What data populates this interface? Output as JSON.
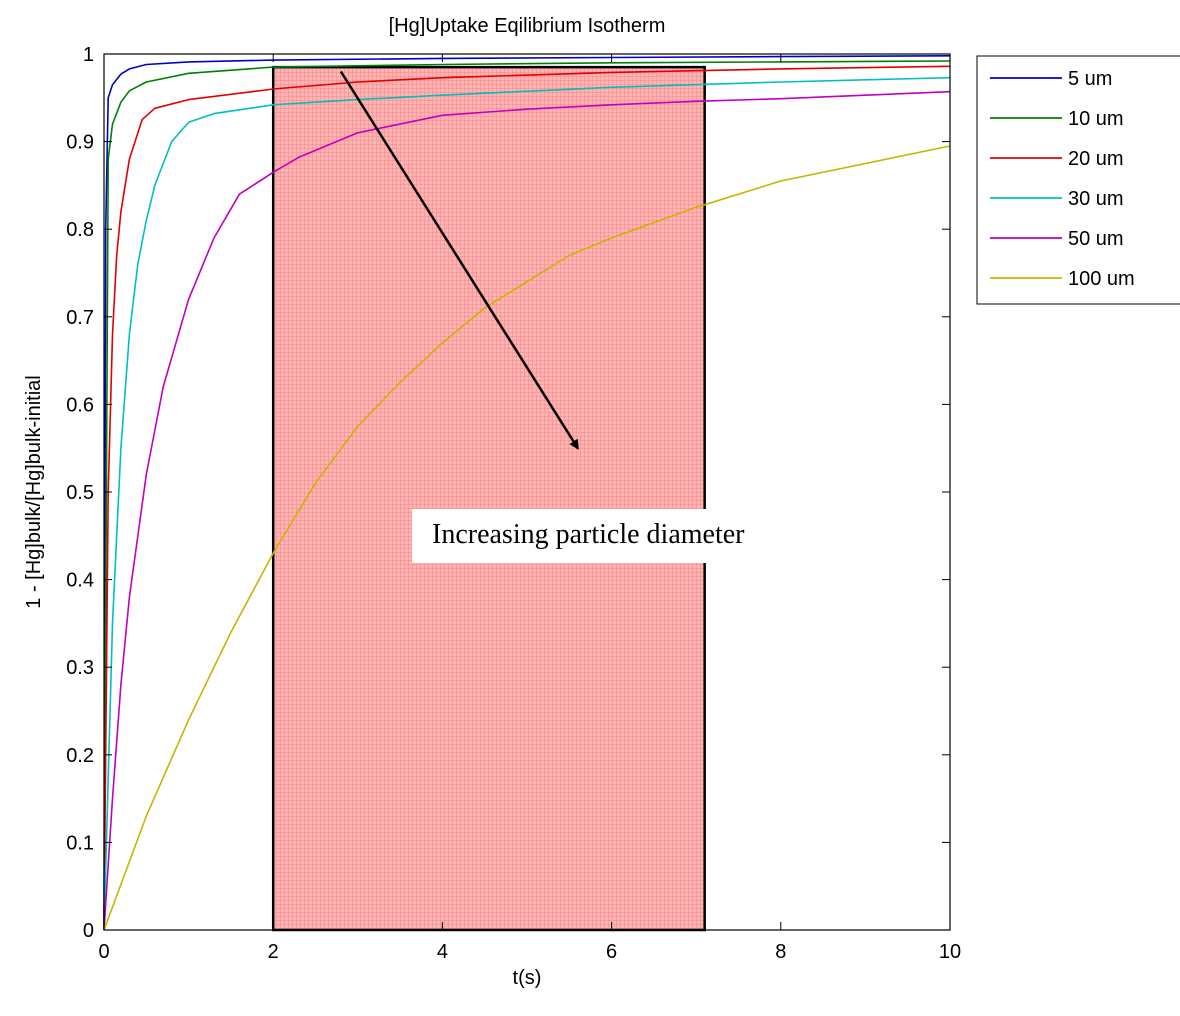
{
  "chart_data": {
    "type": "line",
    "title": "[Hg]Uptake Eqilibrium Isotherm",
    "xlabel": "t(s)",
    "ylabel": "1 - [Hg]bulk/[Hg]bulk-initial",
    "xlim": [
      0,
      10
    ],
    "ylim": [
      0,
      1
    ],
    "xticks": [
      "0",
      "2",
      "4",
      "6",
      "8",
      "10"
    ],
    "yticks": [
      "0",
      "0.1",
      "0.2",
      "0.3",
      "0.4",
      "0.5",
      "0.6",
      "0.7",
      "0.8",
      "0.9",
      "1"
    ],
    "grid": false,
    "legend_position": "outside-top-right",
    "series": [
      {
        "name": "5 um",
        "color": "#0000cc",
        "x": [
          0,
          0.02,
          0.05,
          0.1,
          0.2,
          0.3,
          0.5,
          1,
          2,
          4,
          6,
          8,
          10
        ],
        "y": [
          0,
          0.8,
          0.95,
          0.965,
          0.977,
          0.983,
          0.988,
          0.991,
          0.993,
          0.995,
          0.996,
          0.997,
          0.998
        ]
      },
      {
        "name": "10 um",
        "color": "#008000",
        "x": [
          0,
          0.05,
          0.1,
          0.2,
          0.3,
          0.5,
          1,
          2,
          4,
          6,
          8,
          10
        ],
        "y": [
          0,
          0.88,
          0.92,
          0.945,
          0.958,
          0.968,
          0.978,
          0.985,
          0.988,
          0.99,
          0.991,
          0.992
        ]
      },
      {
        "name": "20 um",
        "color": "#e00000",
        "x": [
          0,
          0.05,
          0.1,
          0.15,
          0.2,
          0.3,
          0.45,
          0.6,
          1,
          2,
          3,
          4,
          6,
          8,
          10
        ],
        "y": [
          0,
          0.5,
          0.68,
          0.77,
          0.82,
          0.88,
          0.925,
          0.938,
          0.948,
          0.96,
          0.968,
          0.973,
          0.979,
          0.983,
          0.986
        ]
      },
      {
        "name": "30 um",
        "color": "#00bfbf",
        "x": [
          0,
          0.1,
          0.2,
          0.3,
          0.4,
          0.5,
          0.6,
          0.8,
          1,
          1.3,
          2,
          3,
          4,
          6,
          8,
          10
        ],
        "y": [
          0,
          0.35,
          0.55,
          0.68,
          0.76,
          0.81,
          0.85,
          0.9,
          0.922,
          0.932,
          0.942,
          0.948,
          0.953,
          0.962,
          0.968,
          0.973
        ]
      },
      {
        "name": "50 um",
        "color": "#bf00bf",
        "x": [
          0,
          0.1,
          0.2,
          0.3,
          0.5,
          0.7,
          1,
          1.3,
          1.6,
          2,
          2.3,
          3,
          4,
          5,
          6,
          7,
          8,
          9,
          10
        ],
        "y": [
          0,
          0.15,
          0.28,
          0.38,
          0.52,
          0.62,
          0.72,
          0.79,
          0.84,
          0.865,
          0.882,
          0.91,
          0.93,
          0.937,
          0.942,
          0.946,
          0.949,
          0.953,
          0.957
        ]
      },
      {
        "name": "100 um",
        "color": "#c8b400",
        "x": [
          0,
          0.5,
          1,
          1.5,
          2,
          2.5,
          3,
          3.5,
          4,
          4.5,
          5,
          5.5,
          6,
          7,
          8,
          9,
          10
        ],
        "y": [
          0,
          0.13,
          0.24,
          0.34,
          0.43,
          0.51,
          0.575,
          0.625,
          0.67,
          0.71,
          0.74,
          0.77,
          0.79,
          0.825,
          0.855,
          0.875,
          0.895
        ]
      }
    ],
    "highlight_region": {
      "x_range": [
        2,
        7.1
      ],
      "y_range": [
        0,
        0.985
      ],
      "fill": "#ff9999",
      "edge": "#000000"
    },
    "annotations": [
      {
        "text": "Increasing particle diameter"
      }
    ],
    "arrow": {
      "from": [
        2.8,
        0.98
      ],
      "to": [
        5.6,
        0.55
      ]
    }
  }
}
